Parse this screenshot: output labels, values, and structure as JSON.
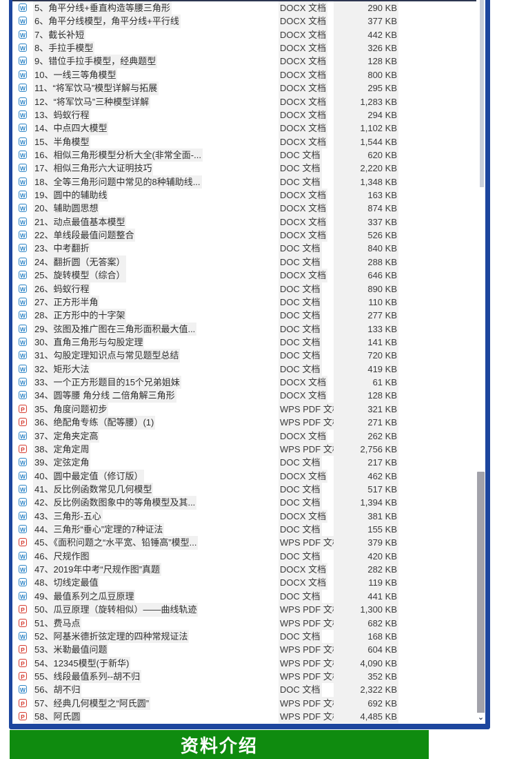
{
  "list": {
    "num_separator": "、",
    "items": [
      {
        "num": "5",
        "name": "角平分线+垂直构造等腰三角形",
        "icon": "word-doc-icon",
        "type": "DOCX 文档",
        "size": "290 KB"
      },
      {
        "num": "6",
        "name": "角平分线模型，角平分线+平行线",
        "icon": "word-doc-icon",
        "type": "DOCX 文档",
        "size": "377 KB"
      },
      {
        "num": "7",
        "name": "截长补短",
        "icon": "word-doc-icon",
        "type": "DOCX 文档",
        "size": "442 KB"
      },
      {
        "num": "8",
        "name": "手拉手模型",
        "icon": "word-doc-icon",
        "type": "DOCX 文档",
        "size": "326 KB"
      },
      {
        "num": "9",
        "name": "错位手拉手模型，经典题型",
        "icon": "word-doc-icon",
        "type": "DOCX 文档",
        "size": "128 KB"
      },
      {
        "num": "10",
        "name": "一线三等角模型",
        "icon": "word-doc-icon",
        "type": "DOCX 文档",
        "size": "800 KB"
      },
      {
        "num": "11",
        "name": "“将军饮马”模型详解与拓展",
        "icon": "word-doc-icon",
        "type": "DOCX 文档",
        "size": "295 KB"
      },
      {
        "num": "12",
        "name": "“将军饮马”三种模型详解",
        "icon": "word-doc-icon",
        "type": "DOCX 文档",
        "size": "1,283 KB"
      },
      {
        "num": "13",
        "name": "蚂蚁行程",
        "icon": "word-doc-icon",
        "type": "DOCX 文档",
        "size": "294 KB"
      },
      {
        "num": "14",
        "name": "中点四大模型",
        "icon": "word-doc-icon",
        "type": "DOCX 文档",
        "size": "1,102 KB"
      },
      {
        "num": "15",
        "name": "半角模型",
        "icon": "word-doc-icon",
        "type": "DOCX 文档",
        "size": "1,544 KB"
      },
      {
        "num": "16",
        "name": "相似三角形模型分析大全(非常全面-...",
        "icon": "word-doc-icon",
        "type": "DOC 文档",
        "size": "620 KB"
      },
      {
        "num": "17",
        "name": "相似三角形六大证明技巧",
        "icon": "word-doc-icon",
        "type": "DOC 文档",
        "size": "2,220 KB"
      },
      {
        "num": "18",
        "name": "全等三角形问题中常见的8种辅助线...",
        "icon": "word-doc-icon",
        "type": "DOC 文档",
        "size": "1,348 KB"
      },
      {
        "num": "19",
        "name": "圆中的辅助线",
        "icon": "word-doc-icon",
        "type": "DOCX 文档",
        "size": "163 KB"
      },
      {
        "num": "20",
        "name": "辅助圆思想",
        "icon": "word-doc-icon",
        "type": "DOCX 文档",
        "size": "874 KB"
      },
      {
        "num": "21",
        "name": "动点最值基本模型",
        "icon": "word-doc-icon",
        "type": "DOCX 文档",
        "size": "337 KB"
      },
      {
        "num": "22",
        "name": "单线段最值问题整合",
        "icon": "word-doc-icon",
        "type": "DOCX 文档",
        "size": "526 KB"
      },
      {
        "num": "23",
        "name": "中考翻折",
        "icon": "word-doc-icon",
        "type": "DOC 文档",
        "size": "840 KB"
      },
      {
        "num": "24",
        "name": "翻折圆（无答案）",
        "icon": "word-doc-icon",
        "type": "DOC 文档",
        "size": "288 KB"
      },
      {
        "num": "25",
        "name": "旋转模型（综合）",
        "icon": "word-doc-icon",
        "type": "DOCX 文档",
        "size": "646 KB"
      },
      {
        "num": "26",
        "name": "蚂蚁行程",
        "icon": "word-doc-icon",
        "type": "DOC 文档",
        "size": "890 KB"
      },
      {
        "num": "27",
        "name": "正方形半角",
        "icon": "word-doc-icon",
        "type": "DOC 文档",
        "size": "110 KB"
      },
      {
        "num": "28",
        "name": "正方形中的十字架",
        "icon": "word-doc-icon",
        "type": "DOC 文档",
        "size": "277 KB"
      },
      {
        "num": "29",
        "name": "弦图及推广图在三角形面积最大值...",
        "icon": "word-doc-icon",
        "type": "DOC 文档",
        "size": "133 KB"
      },
      {
        "num": "30",
        "name": "直角三角形与勾股定理",
        "icon": "word-doc-icon",
        "type": "DOC 文档",
        "size": "141 KB"
      },
      {
        "num": "31",
        "name": "勾股定理知识点与常见题型总结",
        "icon": "word-doc-icon",
        "type": "DOC 文档",
        "size": "720 KB"
      },
      {
        "num": "32",
        "name": "矩形大法",
        "icon": "word-doc-icon",
        "type": "DOC 文档",
        "size": "419 KB"
      },
      {
        "num": "33",
        "name": "一个正方形题目的15个兄弟姐妹",
        "icon": "word-doc-icon",
        "type": "DOCX 文档",
        "size": "61 KB"
      },
      {
        "num": "34",
        "name": "圆等腰 角分线 二倍角解三角形",
        "icon": "word-doc-icon",
        "type": "DOCX 文档",
        "size": "128 KB"
      },
      {
        "num": "35",
        "name": "角度问题初步",
        "icon": "pdf-doc-icon",
        "type": "WPS PDF 文档",
        "size": "321 KB"
      },
      {
        "num": "36",
        "name": "绝配角专练（配等腰）(1)",
        "icon": "pdf-doc-icon",
        "type": "WPS PDF 文档",
        "size": "271 KB"
      },
      {
        "num": "37",
        "name": "定角夹定高",
        "icon": "word-doc-icon",
        "type": "DOCX 文档",
        "size": "262 KB"
      },
      {
        "num": "38",
        "name": "定角定周",
        "icon": "pdf-doc-icon",
        "type": "WPS PDF 文档",
        "size": "2,756 KB"
      },
      {
        "num": "39",
        "name": "定弦定角",
        "icon": "word-doc-icon",
        "type": "DOC 文档",
        "size": "217 KB"
      },
      {
        "num": "40",
        "name": "圆中最定值（修订版）",
        "icon": "word-doc-icon",
        "type": "DOCX 文档",
        "size": "462 KB"
      },
      {
        "num": "41",
        "name": "反比例函数常见几何模型",
        "icon": "word-doc-icon",
        "type": "DOC 文档",
        "size": "517 KB"
      },
      {
        "num": "42",
        "name": "反比例函数图象中的等角模型及其...",
        "icon": "word-doc-icon",
        "type": "DOC 文档",
        "size": "1,394 KB"
      },
      {
        "num": "43",
        "name": "三角形-五心",
        "icon": "word-doc-icon",
        "type": "DOCX 文档",
        "size": "381 KB"
      },
      {
        "num": "44",
        "name": "三角形“垂心”定理的7种证法",
        "icon": "word-doc-icon",
        "type": "DOC 文档",
        "size": "155 KB"
      },
      {
        "num": "45",
        "name": "《面积问题之“水平宽、铅锤高”模型...",
        "icon": "pdf-doc-icon",
        "type": "WPS PDF 文档",
        "size": "379 KB"
      },
      {
        "num": "46",
        "name": "尺规作图",
        "icon": "word-doc-icon",
        "type": "DOC 文档",
        "size": "420 KB"
      },
      {
        "num": "47",
        "name": "2019年中考“尺规作图”真题",
        "icon": "word-doc-icon",
        "type": "DOCX 文档",
        "size": "282 KB"
      },
      {
        "num": "48",
        "name": "切线定最值",
        "icon": "word-doc-icon",
        "type": "DOCX 文档",
        "size": "119 KB"
      },
      {
        "num": "49",
        "name": "最值系列之瓜豆原理",
        "icon": "word-doc-icon",
        "type": "DOC 文档",
        "size": "441 KB"
      },
      {
        "num": "50",
        "name": "瓜豆原理（旋转相似）——曲线轨迹",
        "icon": "pdf-doc-icon",
        "type": "WPS PDF 文档",
        "size": "1,300 KB"
      },
      {
        "num": "51",
        "name": "费马点",
        "icon": "pdf-doc-icon",
        "type": "WPS PDF 文档",
        "size": "682 KB"
      },
      {
        "num": "52",
        "name": "阿基米德折弦定理的四种常规证法",
        "icon": "word-doc-icon",
        "type": "DOC 文档",
        "size": "168 KB"
      },
      {
        "num": "53",
        "name": "米勒最值问题",
        "icon": "pdf-doc-icon",
        "type": "WPS PDF 文档",
        "size": "604 KB"
      },
      {
        "num": "54",
        "name": "12345模型(于新华)",
        "icon": "pdf-doc-icon",
        "type": "WPS PDF 文档",
        "size": "4,090 KB"
      },
      {
        "num": "55",
        "name": "线段最值系列--胡不归",
        "icon": "pdf-doc-icon",
        "type": "WPS PDF 文档",
        "size": "352 KB"
      },
      {
        "num": "56",
        "name": "胡不归",
        "icon": "word-doc-icon",
        "type": "DOC 文档",
        "size": "2,322 KB"
      },
      {
        "num": "57",
        "name": "经典几何模型之“阿氏圆”",
        "icon": "pdf-doc-icon",
        "type": "WPS PDF 文档",
        "size": "692 KB"
      },
      {
        "num": "58",
        "name": "阿氏圆",
        "icon": "pdf-doc-icon",
        "type": "WPS PDF 文档",
        "size": "4,485 KB"
      }
    ]
  },
  "icons": {
    "word-doc-icon": {
      "letter": "W",
      "color": "#2e86c8"
    },
    "pdf-doc-icon": {
      "letter": "P",
      "color": "#d63b2f"
    }
  },
  "scrollbar": {
    "down_arrow_glyph": "⌄"
  },
  "footer": {
    "banner_label": "资料介绍"
  },
  "colors": {
    "frame_border_blue": "#1d469e",
    "banner_green": "#0f8b0f",
    "scroll_thumb_grey": "#a2a2aa",
    "scroll_thumb_light": "#c9cfdb",
    "text": "#2e2e2e"
  }
}
